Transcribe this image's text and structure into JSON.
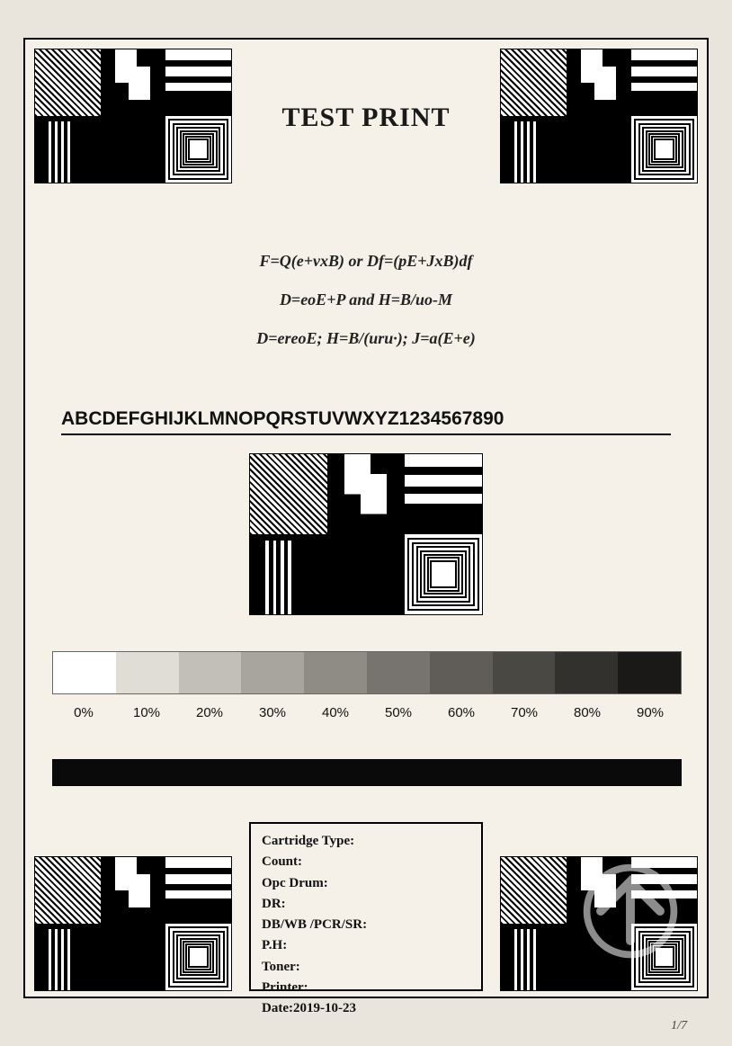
{
  "title": "TEST PRINT",
  "formulas": {
    "line1": "F=Q(e+vxB)   or   Df=(pE+JxB)df",
    "line2": "D=eoE+P   and   H=B/uo-M",
    "line3": "D=ereoE;   H=B/(uru·);   J=a(E+e)"
  },
  "alphabet_row": "ABCDEFGHIJKLMNOPQRSTUVWXYZ1234567890",
  "gradient": {
    "steps": 10,
    "labels": [
      "0%",
      "10%",
      "20%",
      "30%",
      "40%",
      "50%",
      "60%",
      "70%",
      "80%",
      "90%"
    ],
    "colors": [
      "#ffffff",
      "#e0ddd6",
      "#c2bfb8",
      "#a8a59e",
      "#8f8c86",
      "#77746f",
      "#605d58",
      "#4a4843",
      "#33312d",
      "#1a1917"
    ],
    "border_color": "#666666",
    "label_fontsize": 15
  },
  "solid_bar_color": "#0a0a0a",
  "info": {
    "fields": [
      {
        "label": "Cartridge Type:",
        "value": ""
      },
      {
        "label": "Count:",
        "value": ""
      },
      {
        "label": "Opc Drum:",
        "value": ""
      },
      {
        "label": "DR:",
        "value": ""
      },
      {
        "label": "DB/WB /PCR/SR:",
        "value": ""
      },
      {
        "label": "P.H:",
        "value": ""
      },
      {
        "label": "Toner:",
        "value": ""
      },
      {
        "label": "Printer:",
        "value": ""
      },
      {
        "label": "Date:",
        "value": "2019-10-23"
      }
    ]
  },
  "page_number": "1/7",
  "colors": {
    "page_bg": "#f5f1e8",
    "body_bg": "#e9e4dc",
    "border": "#000000",
    "text": "#111111"
  },
  "pattern_block": {
    "type": "test-pattern-grid",
    "grid": "3x2",
    "cells": [
      "diagonal-hatch",
      "checker-2x2",
      "horizontal-stripes",
      "vertical-bars-on-black",
      "solid-black",
      "concentric-squares"
    ],
    "hatch_angle_deg": 45,
    "colors": {
      "fg": "#000000",
      "bg": "#ffffff"
    }
  }
}
